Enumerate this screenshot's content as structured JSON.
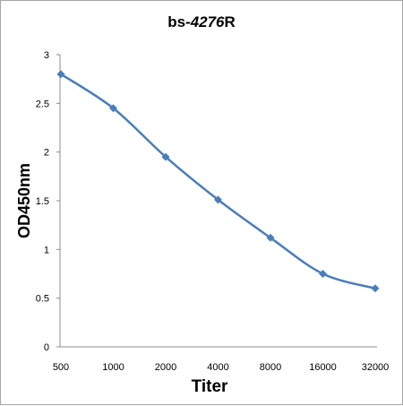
{
  "chart_data": {
    "type": "line",
    "title_parts": [
      "bs-",
      "4276",
      "R"
    ],
    "xlabel": "Titer",
    "ylabel": "OD450nm",
    "categories": [
      "500",
      "1000",
      "2000",
      "4000",
      "8000",
      "16000",
      "32000"
    ],
    "series": [
      {
        "values": [
          2.8,
          2.45,
          1.95,
          1.51,
          1.12,
          0.75,
          0.6
        ],
        "color": "#4a7ebb",
        "marker": "diamond"
      }
    ],
    "ylim": [
      0,
      3
    ],
    "yticks": [
      "0",
      "0.5",
      "1",
      "1.5",
      "2",
      "2.5",
      "3"
    ],
    "grid": false,
    "legend": "none"
  }
}
